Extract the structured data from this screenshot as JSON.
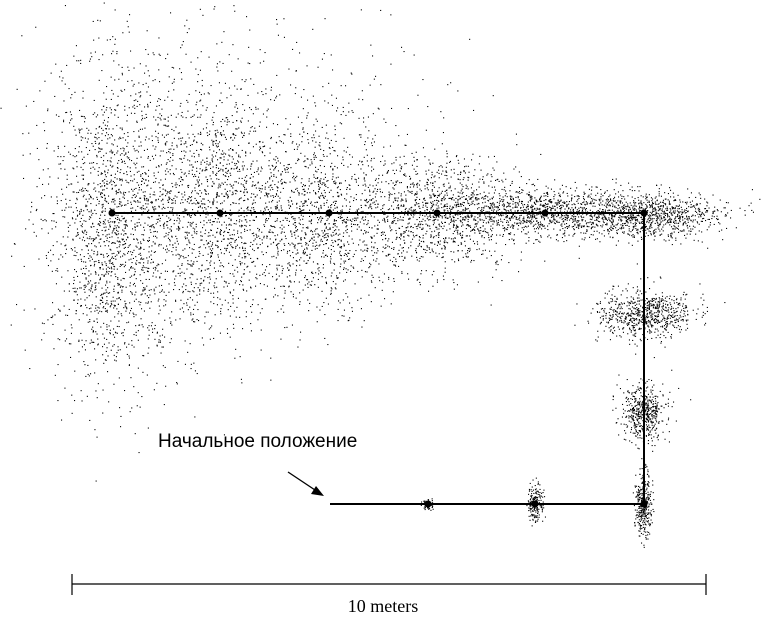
{
  "start_label": "Начальное положение",
  "scale_label": "10 meters",
  "colors": {
    "ink": "#000000",
    "background": "#ffffff"
  }
}
